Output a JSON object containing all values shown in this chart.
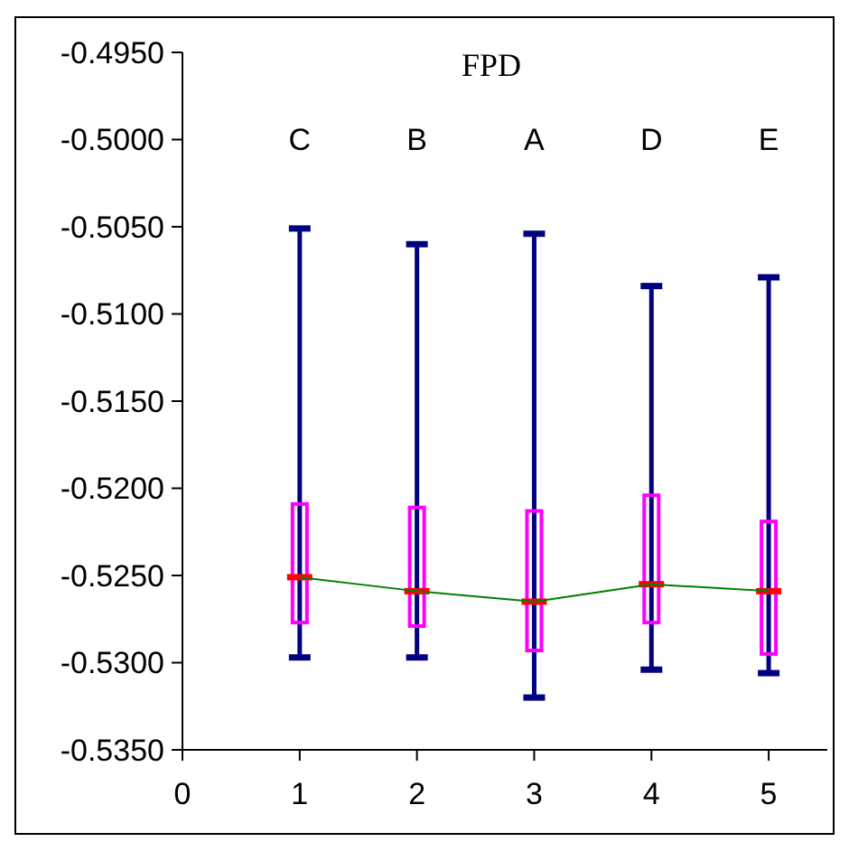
{
  "chart_data": {
    "type": "box",
    "title": "FPD",
    "xlim": [
      0,
      5.5
    ],
    "xticks": [
      0,
      1,
      2,
      3,
      4,
      5
    ],
    "ylim": [
      -0.535,
      -0.495
    ],
    "yticks": [
      {
        "value": -0.535,
        "label": "-0.5350"
      },
      {
        "value": -0.53,
        "label": "-0.5300"
      },
      {
        "value": -0.525,
        "label": "-0.5250"
      },
      {
        "value": -0.52,
        "label": "-0.5200"
      },
      {
        "value": -0.515,
        "label": "-0.5150"
      },
      {
        "value": -0.51,
        "label": "-0.5100"
      },
      {
        "value": -0.505,
        "label": "-0.5050"
      },
      {
        "value": -0.5,
        "label": "-0.5000"
      },
      {
        "value": -0.495,
        "label": "-0.4950"
      }
    ],
    "grid": false,
    "annotations": [
      "C",
      "B",
      "A",
      "D",
      "E"
    ],
    "series": [
      {
        "color": "#ff00ff",
        "x": [
          1,
          2,
          3,
          4,
          5
        ],
        "boxes": [
          {
            "low": -0.5297,
            "q1": -0.5277,
            "median": -0.5251,
            "q3": -0.5209,
            "high": -0.5051
          },
          {
            "low": -0.5297,
            "q1": -0.5279,
            "median": -0.5259,
            "q3": -0.5211,
            "high": -0.506
          },
          {
            "low": -0.532,
            "q1": -0.5293,
            "median": -0.5265,
            "q3": -0.5213,
            "high": -0.5054
          },
          {
            "low": -0.5304,
            "q1": -0.5277,
            "median": -0.5255,
            "q3": -0.5204,
            "high": -0.5084
          },
          {
            "low": -0.5306,
            "q1": -0.5295,
            "median": -0.5259,
            "q3": -0.5219,
            "high": -0.5079
          }
        ]
      },
      {
        "type": "line",
        "color": "#008000",
        "x": [
          1,
          2,
          3,
          4,
          5
        ],
        "values": [
          -0.5251,
          -0.5259,
          -0.5265,
          -0.5255,
          -0.5259
        ],
        "marker": "none",
        "line_style": "solid"
      }
    ]
  }
}
